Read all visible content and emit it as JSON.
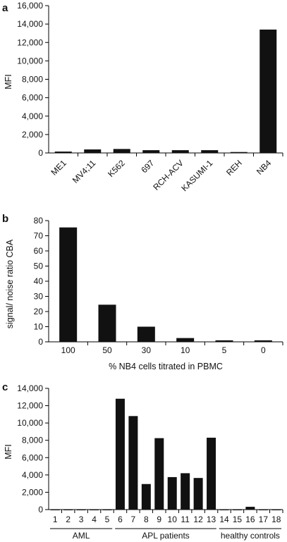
{
  "chart_data": [
    {
      "panel": "a",
      "type": "bar",
      "ylabel": "MFI",
      "ylim": [
        0,
        16000
      ],
      "yticks": [
        0,
        2000,
        4000,
        6000,
        8000,
        10000,
        12000,
        14000,
        16000
      ],
      "ytick_labels": [
        "0",
        "2,000",
        "4,000",
        "6,000",
        "8,000",
        "10,000",
        "12,000",
        "14,000",
        "16,000"
      ],
      "categories": [
        "ME1",
        "MV4;11",
        "K562",
        "697",
        "RCH-ACV",
        "KASUMI-1",
        "REH",
        "NB4"
      ],
      "values": [
        150,
        380,
        430,
        300,
        300,
        300,
        100,
        13400
      ],
      "bar_color": "#111111",
      "grid": false
    },
    {
      "panel": "b",
      "type": "bar",
      "ylabel": "signal/ noise ratio CBA",
      "xlabel": "% NB4 cells titrated in PBMC",
      "ylim": [
        0,
        80
      ],
      "yticks": [
        0,
        10,
        20,
        30,
        40,
        50,
        60,
        70,
        80
      ],
      "ytick_labels": [
        "0",
        "10",
        "20",
        "30",
        "40",
        "50",
        "60",
        "70",
        "80"
      ],
      "categories": [
        "100",
        "50",
        "30",
        "10",
        "5",
        "0"
      ],
      "values": [
        75.5,
        24.5,
        10,
        2.5,
        1,
        1
      ],
      "bar_color": "#111111",
      "grid": false
    },
    {
      "panel": "c",
      "type": "bar",
      "ylabel": "MFI",
      "ylim": [
        0,
        14000
      ],
      "yticks": [
        0,
        2000,
        4000,
        6000,
        8000,
        10000,
        12000,
        14000
      ],
      "ytick_labels": [
        "0",
        "2,000",
        "4,000",
        "6,000",
        "8,000",
        "10,000",
        "12,000",
        "14,000"
      ],
      "categories": [
        "1",
        "2",
        "3",
        "4",
        "5",
        "6",
        "7",
        "8",
        "9",
        "10",
        "11",
        "12",
        "13",
        "14",
        "15",
        "16",
        "17",
        "18"
      ],
      "values": [
        40,
        40,
        40,
        40,
        40,
        12800,
        10800,
        2950,
        8250,
        3750,
        4200,
        3650,
        8300,
        40,
        40,
        320,
        40,
        40
      ],
      "groups": [
        {
          "label": "AML",
          "from": 0,
          "to": 4
        },
        {
          "label": "APL patients",
          "from": 5,
          "to": 12
        },
        {
          "label": "healthy controls",
          "from": 13,
          "to": 17
        }
      ],
      "bar_color": "#111111",
      "grid": false
    }
  ]
}
